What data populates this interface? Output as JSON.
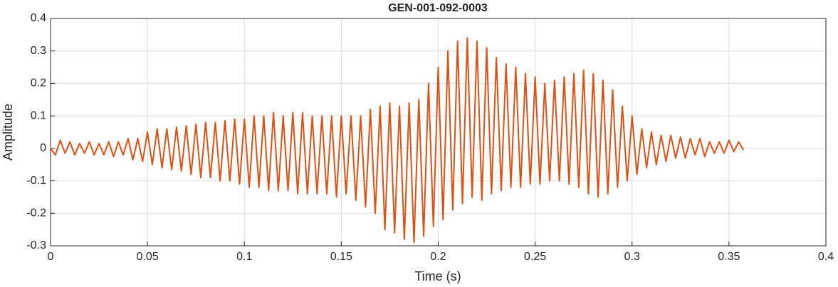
{
  "chart_data": {
    "type": "line",
    "title": "GEN-001-092-0003",
    "x_label": "Time (s)",
    "y_label": "Amplitude",
    "xlim": [
      0,
      0.4
    ],
    "xticks": [
      0,
      0.05,
      0.1,
      0.15,
      0.2,
      0.25,
      0.3,
      0.35,
      0.4
    ],
    "ylim": [
      -0.3,
      0.4
    ],
    "yticks": [
      -0.3,
      -0.2,
      -0.1,
      0,
      0.1,
      0.2,
      0.3,
      0.4
    ],
    "grid": true,
    "x": [
      0,
      0.0025,
      0.005,
      0.0075,
      0.01,
      0.0125,
      0.015,
      0.0175,
      0.02,
      0.0225,
      0.025,
      0.0275,
      0.03,
      0.0325,
      0.035,
      0.0375,
      0.04,
      0.0425,
      0.045,
      0.0475,
      0.05,
      0.0525,
      0.055,
      0.0575,
      0.06,
      0.0625,
      0.065,
      0.0675,
      0.07,
      0.0725,
      0.075,
      0.0775,
      0.08,
      0.0825,
      0.085,
      0.0875,
      0.09,
      0.0925,
      0.095,
      0.0975,
      0.1,
      0.1025,
      0.105,
      0.1075,
      0.11,
      0.1125,
      0.115,
      0.1175,
      0.12,
      0.1225,
      0.125,
      0.1275,
      0.13,
      0.1325,
      0.135,
      0.1375,
      0.14,
      0.1425,
      0.145,
      0.1475,
      0.15,
      0.1525,
      0.155,
      0.1575,
      0.16,
      0.1625,
      0.165,
      0.1675,
      0.17,
      0.1725,
      0.175,
      0.1775,
      0.18,
      0.1825,
      0.185,
      0.1875,
      0.19,
      0.1925,
      0.195,
      0.1975,
      0.2,
      0.2025,
      0.205,
      0.2075,
      0.21,
      0.2125,
      0.215,
      0.2175,
      0.22,
      0.2225,
      0.225,
      0.2275,
      0.23,
      0.2325,
      0.235,
      0.2375,
      0.24,
      0.2425,
      0.245,
      0.2475,
      0.25,
      0.2525,
      0.255,
      0.2575,
      0.26,
      0.2625,
      0.265,
      0.2675,
      0.27,
      0.2725,
      0.275,
      0.2775,
      0.28,
      0.2825,
      0.285,
      0.2875,
      0.29,
      0.2925,
      0.295,
      0.2975,
      0.3,
      0.3025,
      0.305,
      0.3075,
      0.31,
      0.3125,
      0.315,
      0.3175,
      0.32,
      0.3225,
      0.325,
      0.3275,
      0.33,
      0.3325,
      0.335,
      0.3375,
      0.34,
      0.3425,
      0.345,
      0.3475,
      0.35,
      0.3525,
      0.355,
      0.3575
    ],
    "series": [
      {
        "color": "#d95319",
        "values": [
          0,
          -0.02,
          0.025,
          -0.015,
          0.02,
          -0.02,
          0.015,
          -0.015,
          0.02,
          -0.02,
          0.015,
          -0.02,
          0.02,
          -0.025,
          0.02,
          -0.02,
          0.03,
          -0.035,
          0.03,
          -0.04,
          0.05,
          -0.05,
          0.06,
          -0.06,
          0.06,
          -0.065,
          0.065,
          -0.07,
          0.07,
          -0.08,
          0.075,
          -0.09,
          0.08,
          -0.09,
          0.08,
          -0.1,
          0.085,
          -0.1,
          0.09,
          -0.11,
          0.09,
          -0.12,
          0.1,
          -0.12,
          0.1,
          -0.13,
          0.11,
          -0.13,
          0.1,
          -0.13,
          0.11,
          -0.14,
          0.11,
          -0.14,
          0.1,
          -0.14,
          0.1,
          -0.14,
          0.1,
          -0.15,
          0.1,
          -0.14,
          0.1,
          -0.16,
          0.1,
          -0.18,
          0.12,
          -0.2,
          0.13,
          -0.25,
          0.14,
          -0.26,
          0.13,
          -0.28,
          0.14,
          -0.29,
          0.15,
          -0.27,
          0.2,
          -0.24,
          0.25,
          -0.22,
          0.3,
          -0.19,
          0.33,
          -0.17,
          0.34,
          -0.15,
          0.33,
          -0.16,
          0.31,
          -0.14,
          0.28,
          -0.13,
          0.26,
          -0.12,
          0.25,
          -0.12,
          0.23,
          -0.11,
          0.22,
          -0.11,
          0.2,
          -0.1,
          0.21,
          -0.1,
          0.22,
          -0.11,
          0.23,
          -0.12,
          0.24,
          -0.14,
          0.23,
          -0.15,
          0.21,
          -0.14,
          0.18,
          -0.12,
          0.13,
          -0.1,
          0.1,
          -0.08,
          0.06,
          -0.06,
          0.05,
          -0.05,
          0.04,
          -0.04,
          0.04,
          -0.03,
          0.035,
          -0.03,
          0.03,
          -0.02,
          0.03,
          -0.025,
          0.02,
          -0.015,
          0.02,
          -0.015,
          0.025,
          -0.01,
          0.02,
          -0.005
        ]
      }
    ]
  }
}
